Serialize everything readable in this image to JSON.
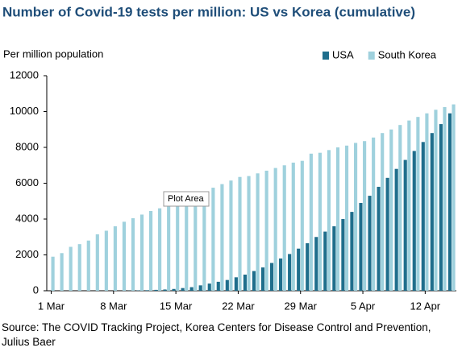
{
  "chart_data": {
    "type": "bar",
    "title": "Number of Covid-19 tests per million: US vs Korea (cumulative)",
    "y_label": "Per million population",
    "annotation": "Plot Area",
    "source": "Source: The COVID Tracking Project, Korea Centers for Disease Control and Prevention, Julius Baer",
    "categories": [
      "1 Mar",
      null,
      null,
      null,
      null,
      null,
      null,
      "8 Mar",
      null,
      null,
      null,
      null,
      null,
      null,
      "15 Mar",
      null,
      null,
      null,
      null,
      null,
      null,
      "22 Mar",
      null,
      null,
      null,
      null,
      null,
      null,
      "29 Mar",
      null,
      null,
      null,
      null,
      null,
      null,
      "5 Apr",
      null,
      null,
      null,
      null,
      null,
      null,
      "12 Apr",
      null,
      null,
      null
    ],
    "series": [
      {
        "name": "USA",
        "color": "#1f6e8c",
        "values": [
          0,
          0,
          0,
          0,
          0,
          0,
          0,
          0,
          0,
          10,
          20,
          30,
          50,
          70,
          100,
          150,
          200,
          300,
          400,
          500,
          600,
          750,
          900,
          1100,
          1300,
          1550,
          1800,
          2050,
          2350,
          2650,
          3000,
          3300,
          3600,
          4000,
          4400,
          4900,
          5300,
          5800,
          6300,
          6800,
          7300,
          7800,
          8300,
          8800,
          9300,
          9900
        ]
      },
      {
        "name": "South Korea",
        "color": "#9fd1dd",
        "values": [
          1900,
          2100,
          2450,
          2600,
          2800,
          3150,
          3350,
          3600,
          3850,
          4050,
          4250,
          4450,
          4600,
          4800,
          4950,
          5100,
          5300,
          5550,
          5750,
          5950,
          6150,
          6350,
          6400,
          6550,
          6700,
          6850,
          7000,
          7150,
          7250,
          7650,
          7700,
          7850,
          8000,
          8100,
          8250,
          8350,
          8550,
          8800,
          9000,
          9250,
          9500,
          9700,
          9900,
          10100,
          10250,
          10400
        ]
      }
    ],
    "ylim": [
      0,
      12000
    ],
    "yticks": [
      0,
      2000,
      4000,
      6000,
      8000,
      10000,
      12000
    ],
    "legend": "top-right"
  }
}
